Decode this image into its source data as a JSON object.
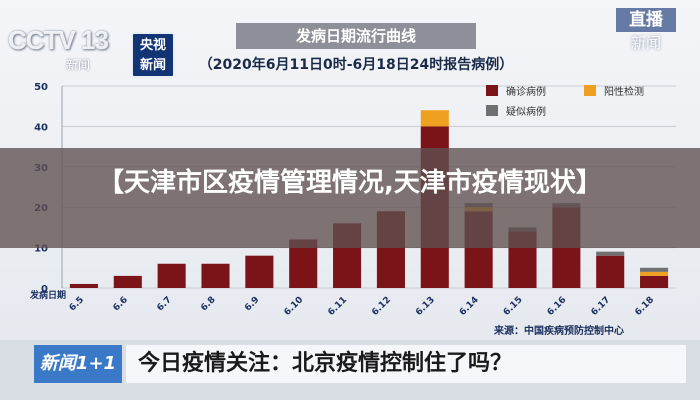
{
  "broadcast": {
    "channel_logo": "CCTV 13",
    "channel_sub": "新闻",
    "badge_line1": "央视",
    "badge_line2": "新闻",
    "live_top": "直播",
    "live_bottom": "新闻"
  },
  "chart_header": {
    "title": "发病日期流行曲线",
    "period": "（2020年6月11日0时-6月18日24时报告病例）"
  },
  "overlay": {
    "headline": "【天津市区疫情管理情况,天津市疫情现状】"
  },
  "source": "来源：中国疾病预防控制中心",
  "ticker": {
    "logo": "新闻1+1",
    "text": "今日疫情关注：北京疫情控制住了吗？"
  },
  "colors": {
    "confirmed": "#7b1418",
    "positive": "#f0a020",
    "suspected": "#707070",
    "grid": "#c8ccd3"
  },
  "chart_data": {
    "type": "bar",
    "stacked": true,
    "title": "发病日期流行曲线",
    "subtitle": "（2020年6月11日0时-6月18日24时报告病例）",
    "xlabel": "发病日期",
    "ylabel": "",
    "ylim": [
      0,
      50
    ],
    "yticks": [
      0,
      10,
      20,
      30,
      40,
      50
    ],
    "categories": [
      "6.5",
      "6.6",
      "6.7",
      "6.8",
      "6.9",
      "6.10",
      "6.11",
      "6.12",
      "6.13",
      "6.14",
      "6.15",
      "6.16",
      "6.17",
      "6.18"
    ],
    "series": [
      {
        "name": "确诊病例",
        "color": "#7b1418",
        "values": [
          1,
          3,
          6,
          6,
          8,
          12,
          16,
          19,
          40,
          19,
          14,
          20,
          8,
          3
        ]
      },
      {
        "name": "阳性检测",
        "color": "#f0a020",
        "values": [
          0,
          0,
          0,
          0,
          0,
          0,
          0,
          0,
          4,
          1,
          0,
          0,
          0,
          1
        ]
      },
      {
        "name": "疑似病例",
        "color": "#707070",
        "values": [
          0,
          0,
          0,
          0,
          0,
          0,
          0,
          0,
          0,
          1,
          1,
          1,
          1,
          1
        ]
      }
    ],
    "grid": true,
    "legend": "top-right"
  }
}
